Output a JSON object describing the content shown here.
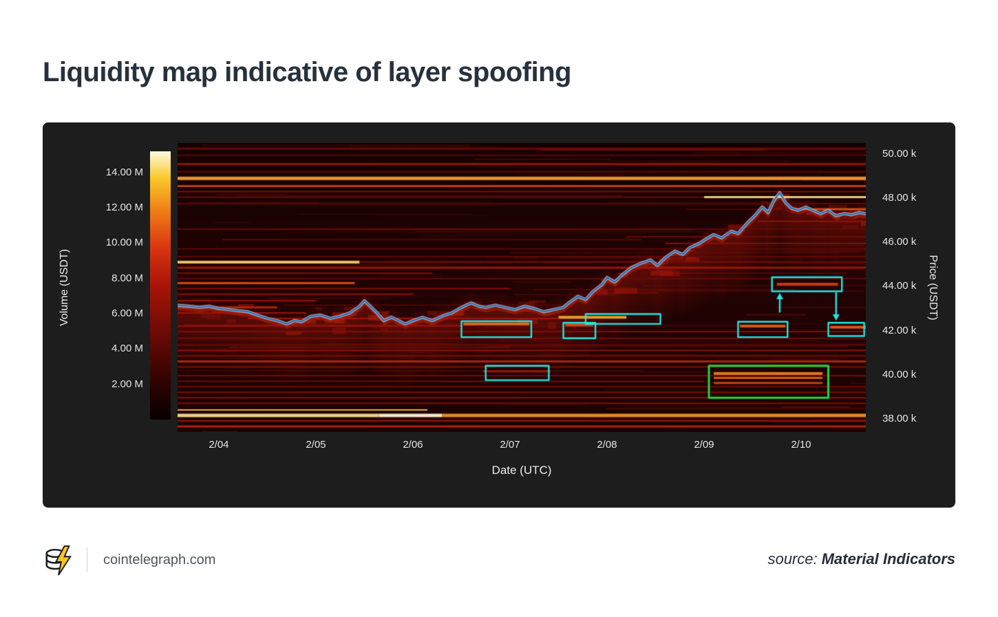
{
  "page": {
    "title": "Liquidity map indicative of layer spoofing"
  },
  "footer": {
    "site": "cointelegraph.com",
    "source_label": "source:",
    "source_name": "Material Indicators"
  },
  "chart_data": {
    "type": "heatmap",
    "title": "Liquidity map indicative of layer spoofing",
    "xlabel": "Date (UTC)",
    "ylabel_left": "Volume (USDT)",
    "ylabel_right": "Price (USDT)",
    "legend_position": "left-colorbar",
    "grid": false,
    "day_range": [
      3.575,
      10.667
    ],
    "price_range": [
      37.4,
      50.5
    ],
    "volume_range": [
      0,
      15.2
    ],
    "x_ticks": [
      {
        "label": "2/04",
        "day": 4
      },
      {
        "label": "2/05",
        "day": 5
      },
      {
        "label": "2/06",
        "day": 6
      },
      {
        "label": "2/07",
        "day": 7
      },
      {
        "label": "2/08",
        "day": 8
      },
      {
        "label": "2/09",
        "day": 9
      },
      {
        "label": "2/10",
        "day": 10
      }
    ],
    "price_ticks": [
      {
        "label": "50.00 k",
        "price": 50
      },
      {
        "label": "48.00 k",
        "price": 48
      },
      {
        "label": "46.00 k",
        "price": 46
      },
      {
        "label": "44.00 k",
        "price": 44
      },
      {
        "label": "42.00 k",
        "price": 42
      },
      {
        "label": "40.00 k",
        "price": 40
      },
      {
        "label": "38.00 k",
        "price": 38
      }
    ],
    "volume_ticks": [
      {
        "label": "14.00 M",
        "value": 14
      },
      {
        "label": "12.00 M",
        "value": 12
      },
      {
        "label": "10.00 M",
        "value": 10
      },
      {
        "label": "8.00 M",
        "value": 8
      },
      {
        "label": "6.00 M",
        "value": 6
      },
      {
        "label": "4.00 M",
        "value": 4
      },
      {
        "label": "2.00 M",
        "value": 2
      }
    ],
    "colors": {
      "panel": "#1d1d1d",
      "heat_bg": "#1a0202",
      "price_line": "#2e6cb0",
      "price_line_halo": "#bed2eb",
      "annotation_cyan": "#1be9e6",
      "annotation_green": "#23d63c",
      "colormap_low": "#1a0303",
      "colormap_mid": "#a81407",
      "colormap_high": "#fffbe2"
    },
    "price_line": [
      [
        3.575,
        43.15
      ],
      [
        3.7,
        43.1
      ],
      [
        3.8,
        43.05
      ],
      [
        3.9,
        43.1
      ],
      [
        4.0,
        43.0
      ],
      [
        4.1,
        42.95
      ],
      [
        4.2,
        42.9
      ],
      [
        4.3,
        42.85
      ],
      [
        4.4,
        42.7
      ],
      [
        4.5,
        42.55
      ],
      [
        4.6,
        42.45
      ],
      [
        4.7,
        42.3
      ],
      [
        4.78,
        42.45
      ],
      [
        4.85,
        42.4
      ],
      [
        4.95,
        42.65
      ],
      [
        5.05,
        42.7
      ],
      [
        5.15,
        42.55
      ],
      [
        5.25,
        42.65
      ],
      [
        5.35,
        42.8
      ],
      [
        5.45,
        43.1
      ],
      [
        5.5,
        43.35
      ],
      [
        5.55,
        43.15
      ],
      [
        5.62,
        42.85
      ],
      [
        5.7,
        42.45
      ],
      [
        5.78,
        42.6
      ],
      [
        5.85,
        42.45
      ],
      [
        5.92,
        42.3
      ],
      [
        6.0,
        42.45
      ],
      [
        6.1,
        42.6
      ],
      [
        6.2,
        42.45
      ],
      [
        6.3,
        42.65
      ],
      [
        6.4,
        42.8
      ],
      [
        6.5,
        43.05
      ],
      [
        6.6,
        43.25
      ],
      [
        6.68,
        43.1
      ],
      [
        6.75,
        43.05
      ],
      [
        6.85,
        43.15
      ],
      [
        6.95,
        43.05
      ],
      [
        7.05,
        42.95
      ],
      [
        7.15,
        43.1
      ],
      [
        7.25,
        43.0
      ],
      [
        7.35,
        42.85
      ],
      [
        7.45,
        42.95
      ],
      [
        7.55,
        43.05
      ],
      [
        7.62,
        43.3
      ],
      [
        7.7,
        43.55
      ],
      [
        7.78,
        43.4
      ],
      [
        7.85,
        43.75
      ],
      [
        7.95,
        44.1
      ],
      [
        8.0,
        44.4
      ],
      [
        8.08,
        44.2
      ],
      [
        8.15,
        44.5
      ],
      [
        8.25,
        44.85
      ],
      [
        8.35,
        45.05
      ],
      [
        8.45,
        45.2
      ],
      [
        8.52,
        44.95
      ],
      [
        8.6,
        45.3
      ],
      [
        8.7,
        45.6
      ],
      [
        8.78,
        45.45
      ],
      [
        8.85,
        45.75
      ],
      [
        8.95,
        45.95
      ],
      [
        9.0,
        46.1
      ],
      [
        9.1,
        46.35
      ],
      [
        9.18,
        46.2
      ],
      [
        9.28,
        46.5
      ],
      [
        9.35,
        46.4
      ],
      [
        9.45,
        46.9
      ],
      [
        9.52,
        47.2
      ],
      [
        9.6,
        47.6
      ],
      [
        9.66,
        47.35
      ],
      [
        9.72,
        47.9
      ],
      [
        9.78,
        48.25
      ],
      [
        9.84,
        47.8
      ],
      [
        9.9,
        47.55
      ],
      [
        9.97,
        47.45
      ],
      [
        10.05,
        47.6
      ],
      [
        10.12,
        47.45
      ],
      [
        10.2,
        47.3
      ],
      [
        10.28,
        47.45
      ],
      [
        10.36,
        47.2
      ],
      [
        10.44,
        47.3
      ],
      [
        10.52,
        47.25
      ],
      [
        10.6,
        47.35
      ],
      [
        10.667,
        47.3
      ]
    ],
    "band_fields": [
      "price",
      "day_start",
      "day_end",
      "thickness_px",
      "intensity"
    ],
    "liquidity_bands": [
      [
        50.25,
        3.5,
        10.7,
        3,
        0.32
      ],
      [
        49.95,
        3.5,
        10.7,
        2,
        0.28
      ],
      [
        49.55,
        3.5,
        10.7,
        3,
        0.45
      ],
      [
        49.2,
        3.5,
        10.7,
        2,
        0.3
      ],
      [
        48.9,
        3.5,
        10.7,
        5,
        0.8
      ],
      [
        48.55,
        3.5,
        10.7,
        3,
        0.62
      ],
      [
        48.3,
        3.5,
        10.7,
        2,
        0.4
      ],
      [
        48.05,
        3.5,
        9.0,
        2,
        0.35
      ],
      [
        48.05,
        9.0,
        10.7,
        3,
        0.92
      ],
      [
        47.75,
        3.5,
        10.7,
        2,
        0.3
      ],
      [
        47.5,
        9.9,
        10.7,
        3,
        0.68
      ],
      [
        47.3,
        10.05,
        10.7,
        2,
        0.5
      ],
      [
        46.95,
        9.55,
        10.7,
        2,
        0.45
      ],
      [
        46.6,
        3.5,
        10.7,
        2,
        0.3
      ],
      [
        46.25,
        8.2,
        10.7,
        2,
        0.35
      ],
      [
        45.95,
        8.6,
        10.7,
        2,
        0.42
      ],
      [
        45.7,
        3.5,
        10.7,
        2,
        0.28
      ],
      [
        45.35,
        3.5,
        10.7,
        2,
        0.3
      ],
      [
        45.1,
        3.5,
        5.45,
        4,
        0.9
      ],
      [
        45.1,
        5.45,
        10.7,
        2,
        0.35
      ],
      [
        44.85,
        3.5,
        10.7,
        3,
        0.5
      ],
      [
        44.6,
        3.5,
        6.2,
        2,
        0.4
      ],
      [
        44.35,
        3.5,
        10.7,
        2,
        0.3
      ],
      [
        44.15,
        3.5,
        5.4,
        3,
        0.66
      ],
      [
        44.1,
        9.75,
        10.38,
        4,
        0.62
      ],
      [
        43.9,
        3.5,
        7.0,
        2,
        0.42
      ],
      [
        43.65,
        3.5,
        6.0,
        2,
        0.45
      ],
      [
        43.35,
        3.5,
        5.0,
        2,
        0.5
      ],
      [
        43.05,
        3.5,
        4.6,
        3,
        0.55
      ],
      [
        42.8,
        3.5,
        4.9,
        2,
        0.5
      ],
      [
        42.6,
        7.5,
        8.2,
        4,
        0.82
      ],
      [
        42.55,
        4.3,
        7.5,
        2,
        0.5
      ],
      [
        42.3,
        6.52,
        7.2,
        4,
        0.72
      ],
      [
        42.25,
        7.57,
        7.86,
        4,
        0.66
      ],
      [
        42.2,
        9.37,
        9.84,
        4,
        0.7
      ],
      [
        42.15,
        10.3,
        10.7,
        4,
        0.7
      ],
      [
        42.2,
        3.5,
        6.5,
        2,
        0.45
      ],
      [
        41.95,
        3.5,
        10.7,
        2,
        0.4
      ],
      [
        41.65,
        3.5,
        10.7,
        2,
        0.36
      ],
      [
        41.35,
        3.5,
        10.7,
        2,
        0.32
      ],
      [
        41.1,
        3.5,
        10.7,
        2,
        0.44
      ],
      [
        40.85,
        3.5,
        10.7,
        2,
        0.38
      ],
      [
        40.6,
        3.5,
        10.7,
        3,
        0.55
      ],
      [
        40.35,
        3.5,
        10.7,
        2,
        0.4
      ],
      [
        40.15,
        6.72,
        7.42,
        3,
        0.5
      ],
      [
        40.05,
        9.1,
        10.22,
        4,
        0.75
      ],
      [
        39.85,
        9.1,
        10.22,
        3,
        0.7
      ],
      [
        39.62,
        9.1,
        10.22,
        3,
        0.64
      ],
      [
        39.95,
        3.5,
        10.7,
        2,
        0.36
      ],
      [
        39.7,
        3.5,
        9.0,
        2,
        0.33
      ],
      [
        39.45,
        3.5,
        10.7,
        2,
        0.35
      ],
      [
        39.2,
        3.5,
        10.7,
        2,
        0.4
      ],
      [
        38.95,
        3.5,
        10.7,
        2,
        0.44
      ],
      [
        38.7,
        3.5,
        10.7,
        2,
        0.4
      ],
      [
        38.4,
        3.5,
        6.15,
        2,
        0.85
      ],
      [
        38.15,
        3.5,
        5.65,
        5,
        0.93
      ],
      [
        38.15,
        5.65,
        6.3,
        5,
        0.99
      ],
      [
        38.15,
        6.3,
        10.7,
        5,
        0.78
      ],
      [
        37.9,
        3.5,
        10.7,
        2,
        0.5
      ],
      [
        37.65,
        3.5,
        10.7,
        3,
        0.55
      ]
    ],
    "annotations": {
      "boxes": [
        {
          "color": "cyan",
          "d0": 6.5,
          "d1": 7.22,
          "p0": 41.7,
          "p1": 42.42
        },
        {
          "color": "cyan",
          "d0": 7.55,
          "d1": 7.88,
          "p0": 41.65,
          "p1": 42.35
        },
        {
          "color": "cyan",
          "d0": 7.78,
          "d1": 8.55,
          "p0": 42.3,
          "p1": 42.75
        },
        {
          "color": "cyan",
          "d0": 9.35,
          "d1": 9.86,
          "p0": 41.7,
          "p1": 42.4
        },
        {
          "color": "cyan",
          "d0": 9.7,
          "d1": 10.42,
          "p0": 43.78,
          "p1": 44.42
        },
        {
          "color": "cyan",
          "d0": 10.28,
          "d1": 10.65,
          "p0": 41.75,
          "p1": 42.35
        },
        {
          "color": "cyan",
          "d0": 6.75,
          "d1": 7.4,
          "p0": 39.75,
          "p1": 40.4
        },
        {
          "color": "green",
          "d0": 9.05,
          "d1": 10.28,
          "p0": 38.95,
          "p1": 40.4
        }
      ],
      "arrows": [
        {
          "day": 9.78,
          "p_from": 42.85,
          "p_to": 43.7,
          "direction": "up"
        },
        {
          "day": 10.36,
          "p_from": 43.7,
          "p_to": 42.45,
          "direction": "down"
        }
      ]
    }
  }
}
